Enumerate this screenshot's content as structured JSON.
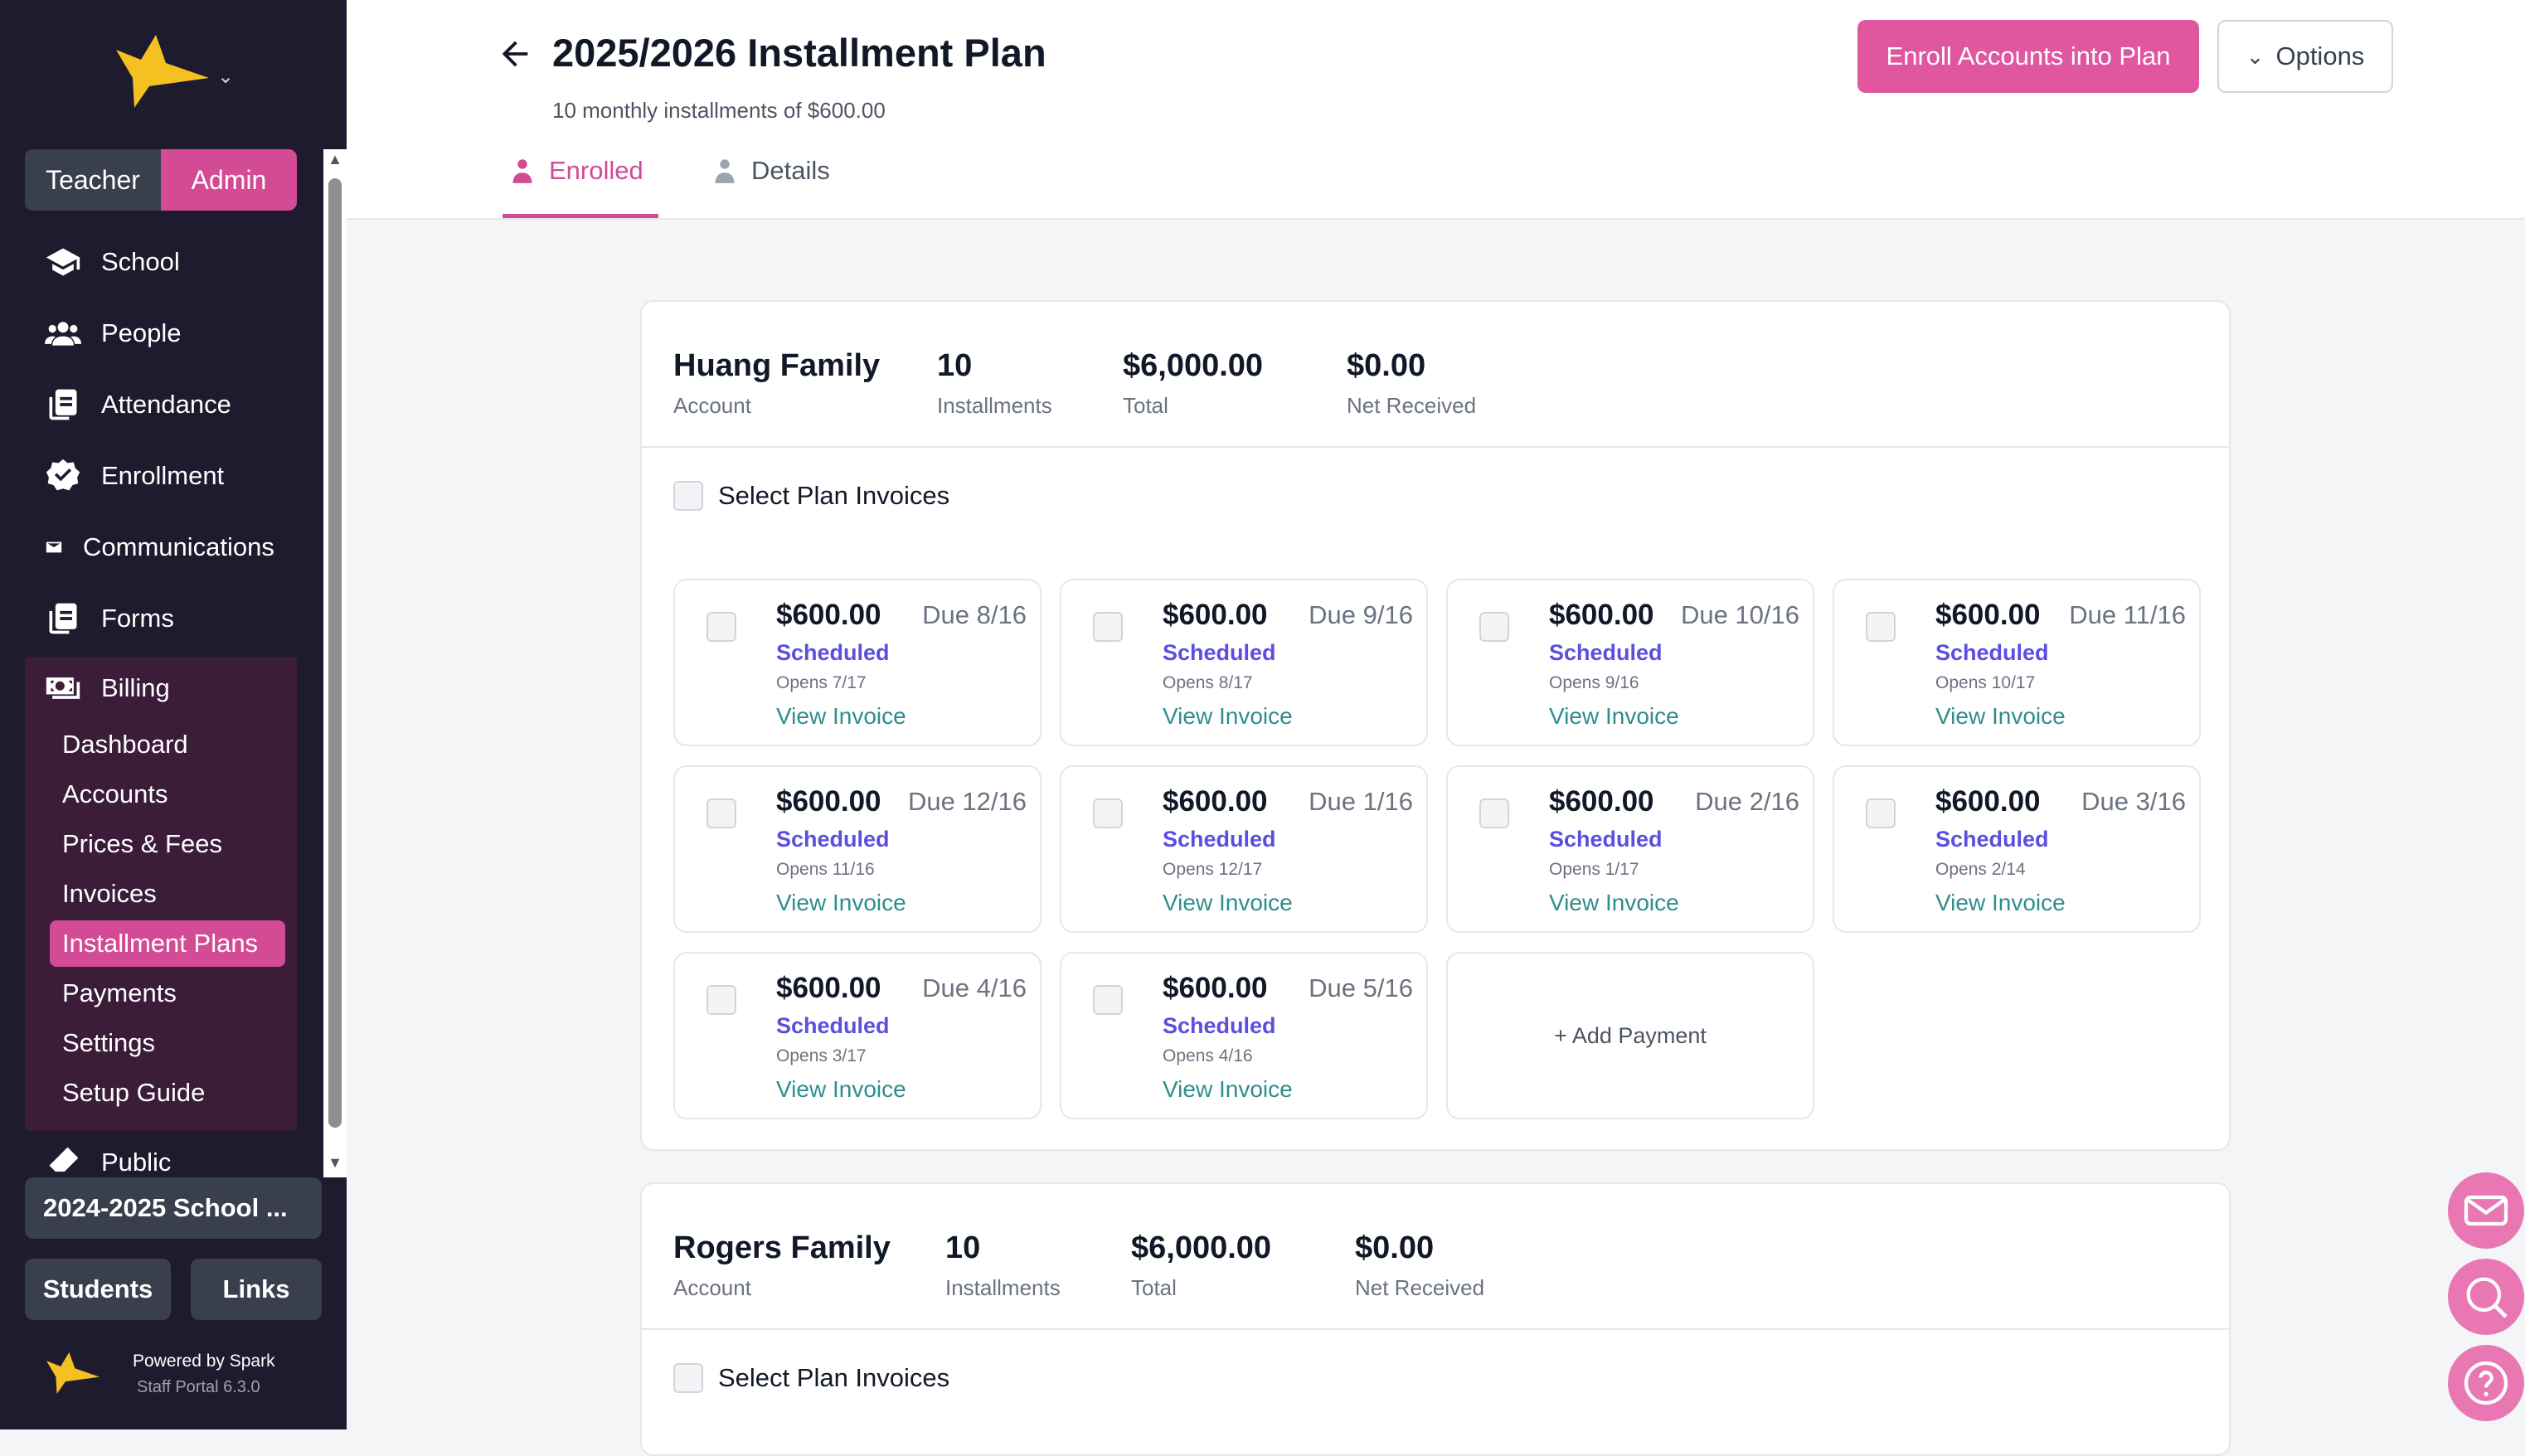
{
  "sidebar": {
    "roles": [
      "Teacher",
      "Admin"
    ],
    "nav": [
      {
        "label": "School",
        "icon": "graduation-cap-icon"
      },
      {
        "label": "People",
        "icon": "users-icon"
      },
      {
        "label": "Attendance",
        "icon": "clipboard-icon"
      },
      {
        "label": "Enrollment",
        "icon": "badge-check-icon"
      },
      {
        "label": "Communications",
        "icon": "envelope-icon"
      },
      {
        "label": "Forms",
        "icon": "forms-icon"
      },
      {
        "label": "Billing",
        "icon": "money-icon"
      }
    ],
    "billing_items": [
      "Dashboard",
      "Accounts",
      "Prices & Fees",
      "Invoices",
      "Installment Plans",
      "Payments",
      "Settings",
      "Setup Guide"
    ],
    "public_label": "Public",
    "school_year": "2024-2025 School ...",
    "students_label": "Students",
    "links_label": "Links",
    "powered_by": "Powered by Spark",
    "version": "Staff Portal 6.3.0"
  },
  "header": {
    "title": "2025/2026 Installment Plan",
    "subtitle": "10 monthly installments of $600.00",
    "enroll_label": "Enroll Accounts into Plan",
    "options_label": "Options",
    "tabs": [
      "Enrolled",
      "Details"
    ]
  },
  "accounts": [
    {
      "name": "Huang Family",
      "name_label": "Account",
      "installments": "10",
      "installments_label": "Installments",
      "total": "$6,000.00",
      "total_label": "Total",
      "net": "$0.00",
      "net_label": "Net Received",
      "select_label": "Select Plan Invoices",
      "items": [
        {
          "amount": "$600.00",
          "due": "Due 8/16",
          "status": "Scheduled",
          "opens": "Opens 7/17",
          "link": "View Invoice"
        },
        {
          "amount": "$600.00",
          "due": "Due 9/16",
          "status": "Scheduled",
          "opens": "Opens 8/17",
          "link": "View Invoice"
        },
        {
          "amount": "$600.00",
          "due": "Due 10/16",
          "status": "Scheduled",
          "opens": "Opens 9/16",
          "link": "View Invoice"
        },
        {
          "amount": "$600.00",
          "due": "Due 11/16",
          "status": "Scheduled",
          "opens": "Opens 10/17",
          "link": "View Invoice"
        },
        {
          "amount": "$600.00",
          "due": "Due 12/16",
          "status": "Scheduled",
          "opens": "Opens 11/16",
          "link": "View Invoice"
        },
        {
          "amount": "$600.00",
          "due": "Due 1/16",
          "status": "Scheduled",
          "opens": "Opens 12/17",
          "link": "View Invoice"
        },
        {
          "amount": "$600.00",
          "due": "Due 2/16",
          "status": "Scheduled",
          "opens": "Opens 1/17",
          "link": "View Invoice"
        },
        {
          "amount": "$600.00",
          "due": "Due 3/16",
          "status": "Scheduled",
          "opens": "Opens 2/14",
          "link": "View Invoice"
        },
        {
          "amount": "$600.00",
          "due": "Due 4/16",
          "status": "Scheduled",
          "opens": "Opens 3/17",
          "link": "View Invoice"
        },
        {
          "amount": "$600.00",
          "due": "Due 5/16",
          "status": "Scheduled",
          "opens": "Opens 4/16",
          "link": "View Invoice"
        }
      ],
      "add_payment": "+ Add Payment"
    },
    {
      "name": "Rogers Family",
      "name_label": "Account",
      "installments": "10",
      "installments_label": "Installments",
      "total": "$6,000.00",
      "total_label": "Total",
      "net": "$0.00",
      "net_label": "Net Received",
      "select_label": "Select Plan Invoices"
    }
  ],
  "colors": {
    "accent": "#d34b94",
    "sidebar": "#1e1b2e",
    "status": "#5b4ee0",
    "link": "#2f8d8d"
  }
}
